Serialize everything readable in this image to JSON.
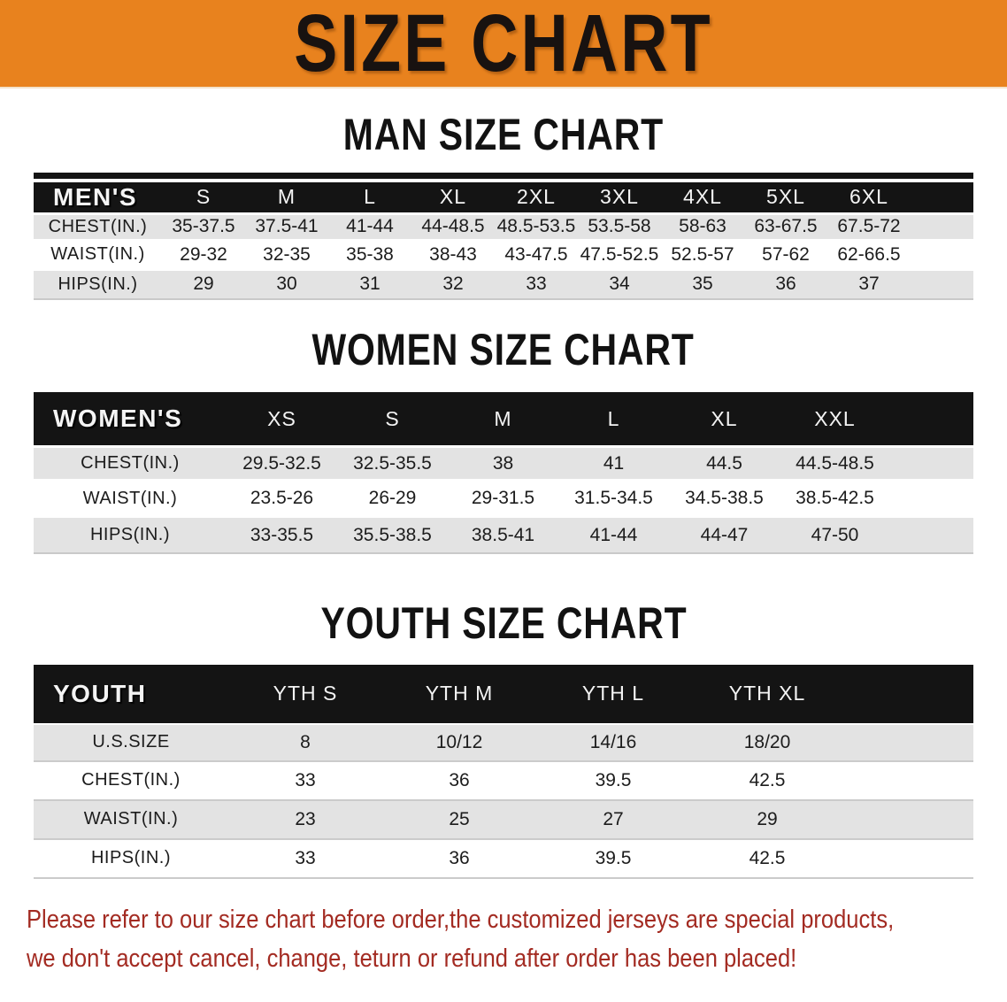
{
  "banner": {
    "title": "SIZE CHART"
  },
  "colors": {
    "banner_bg": "#E8821E",
    "header_bar": "#141414",
    "row_gray": "#e3e3e3",
    "footer_red": "#A32B22"
  },
  "sections": [
    {
      "title": "MAN SIZE CHART",
      "group_label": "MEN'S",
      "columns": [
        "S",
        "M",
        "L",
        "XL",
        "2XL",
        "3XL",
        "4XL",
        "5XL",
        "6XL"
      ],
      "rows": [
        {
          "label": "CHEST(IN.)",
          "values": [
            "35-37.5",
            "37.5-41",
            "41-44",
            "44-48.5",
            "48.5-53.5",
            "53.5-58",
            "58-63",
            "63-67.5",
            "67.5-72"
          ]
        },
        {
          "label": "WAIST(IN.)",
          "values": [
            "29-32",
            "32-35",
            "35-38",
            "38-43",
            "43-47.5",
            "47.5-52.5",
            "52.5-57",
            "57-62",
            "62-66.5"
          ]
        },
        {
          "label": "HIPS(IN.)",
          "values": [
            "29",
            "30",
            "31",
            "32",
            "33",
            "34",
            "35",
            "36",
            "37"
          ]
        }
      ]
    },
    {
      "title": "WOMEN SIZE CHART",
      "group_label": "WOMEN'S",
      "columns": [
        "XS",
        "S",
        "M",
        "L",
        "XL",
        "XXL"
      ],
      "rows": [
        {
          "label": "CHEST(IN.)",
          "values": [
            "29.5-32.5",
            "32.5-35.5",
            "38",
            "41",
            "44.5",
            "44.5-48.5"
          ]
        },
        {
          "label": "WAIST(IN.)",
          "values": [
            "23.5-26",
            "26-29",
            "29-31.5",
            "31.5-34.5",
            "34.5-38.5",
            "38.5-42.5"
          ]
        },
        {
          "label": "HIPS(IN.)",
          "values": [
            "33-35.5",
            "35.5-38.5",
            "38.5-41",
            "41-44",
            "44-47",
            "47-50"
          ]
        }
      ]
    },
    {
      "title": "YOUTH SIZE CHART",
      "group_label": "YOUTH",
      "columns": [
        "YTH S",
        "YTH M",
        "YTH L",
        "YTH XL"
      ],
      "rows": [
        {
          "label": "U.S.SIZE",
          "values": [
            "8",
            "10/12",
            "14/16",
            "18/20"
          ]
        },
        {
          "label": "CHEST(IN.)",
          "values": [
            "33",
            "36",
            "39.5",
            "42.5"
          ]
        },
        {
          "label": "WAIST(IN.)",
          "values": [
            "23",
            "25",
            "27",
            "29"
          ]
        },
        {
          "label": "HIPS(IN.)",
          "values": [
            "33",
            "36",
            "39.5",
            "42.5"
          ]
        }
      ]
    }
  ],
  "footer": {
    "line1": "Please refer to our size chart before order,the customized jerseys are special products,",
    "line2": "we don't accept cancel, change, teturn or refund after order has been placed!"
  }
}
